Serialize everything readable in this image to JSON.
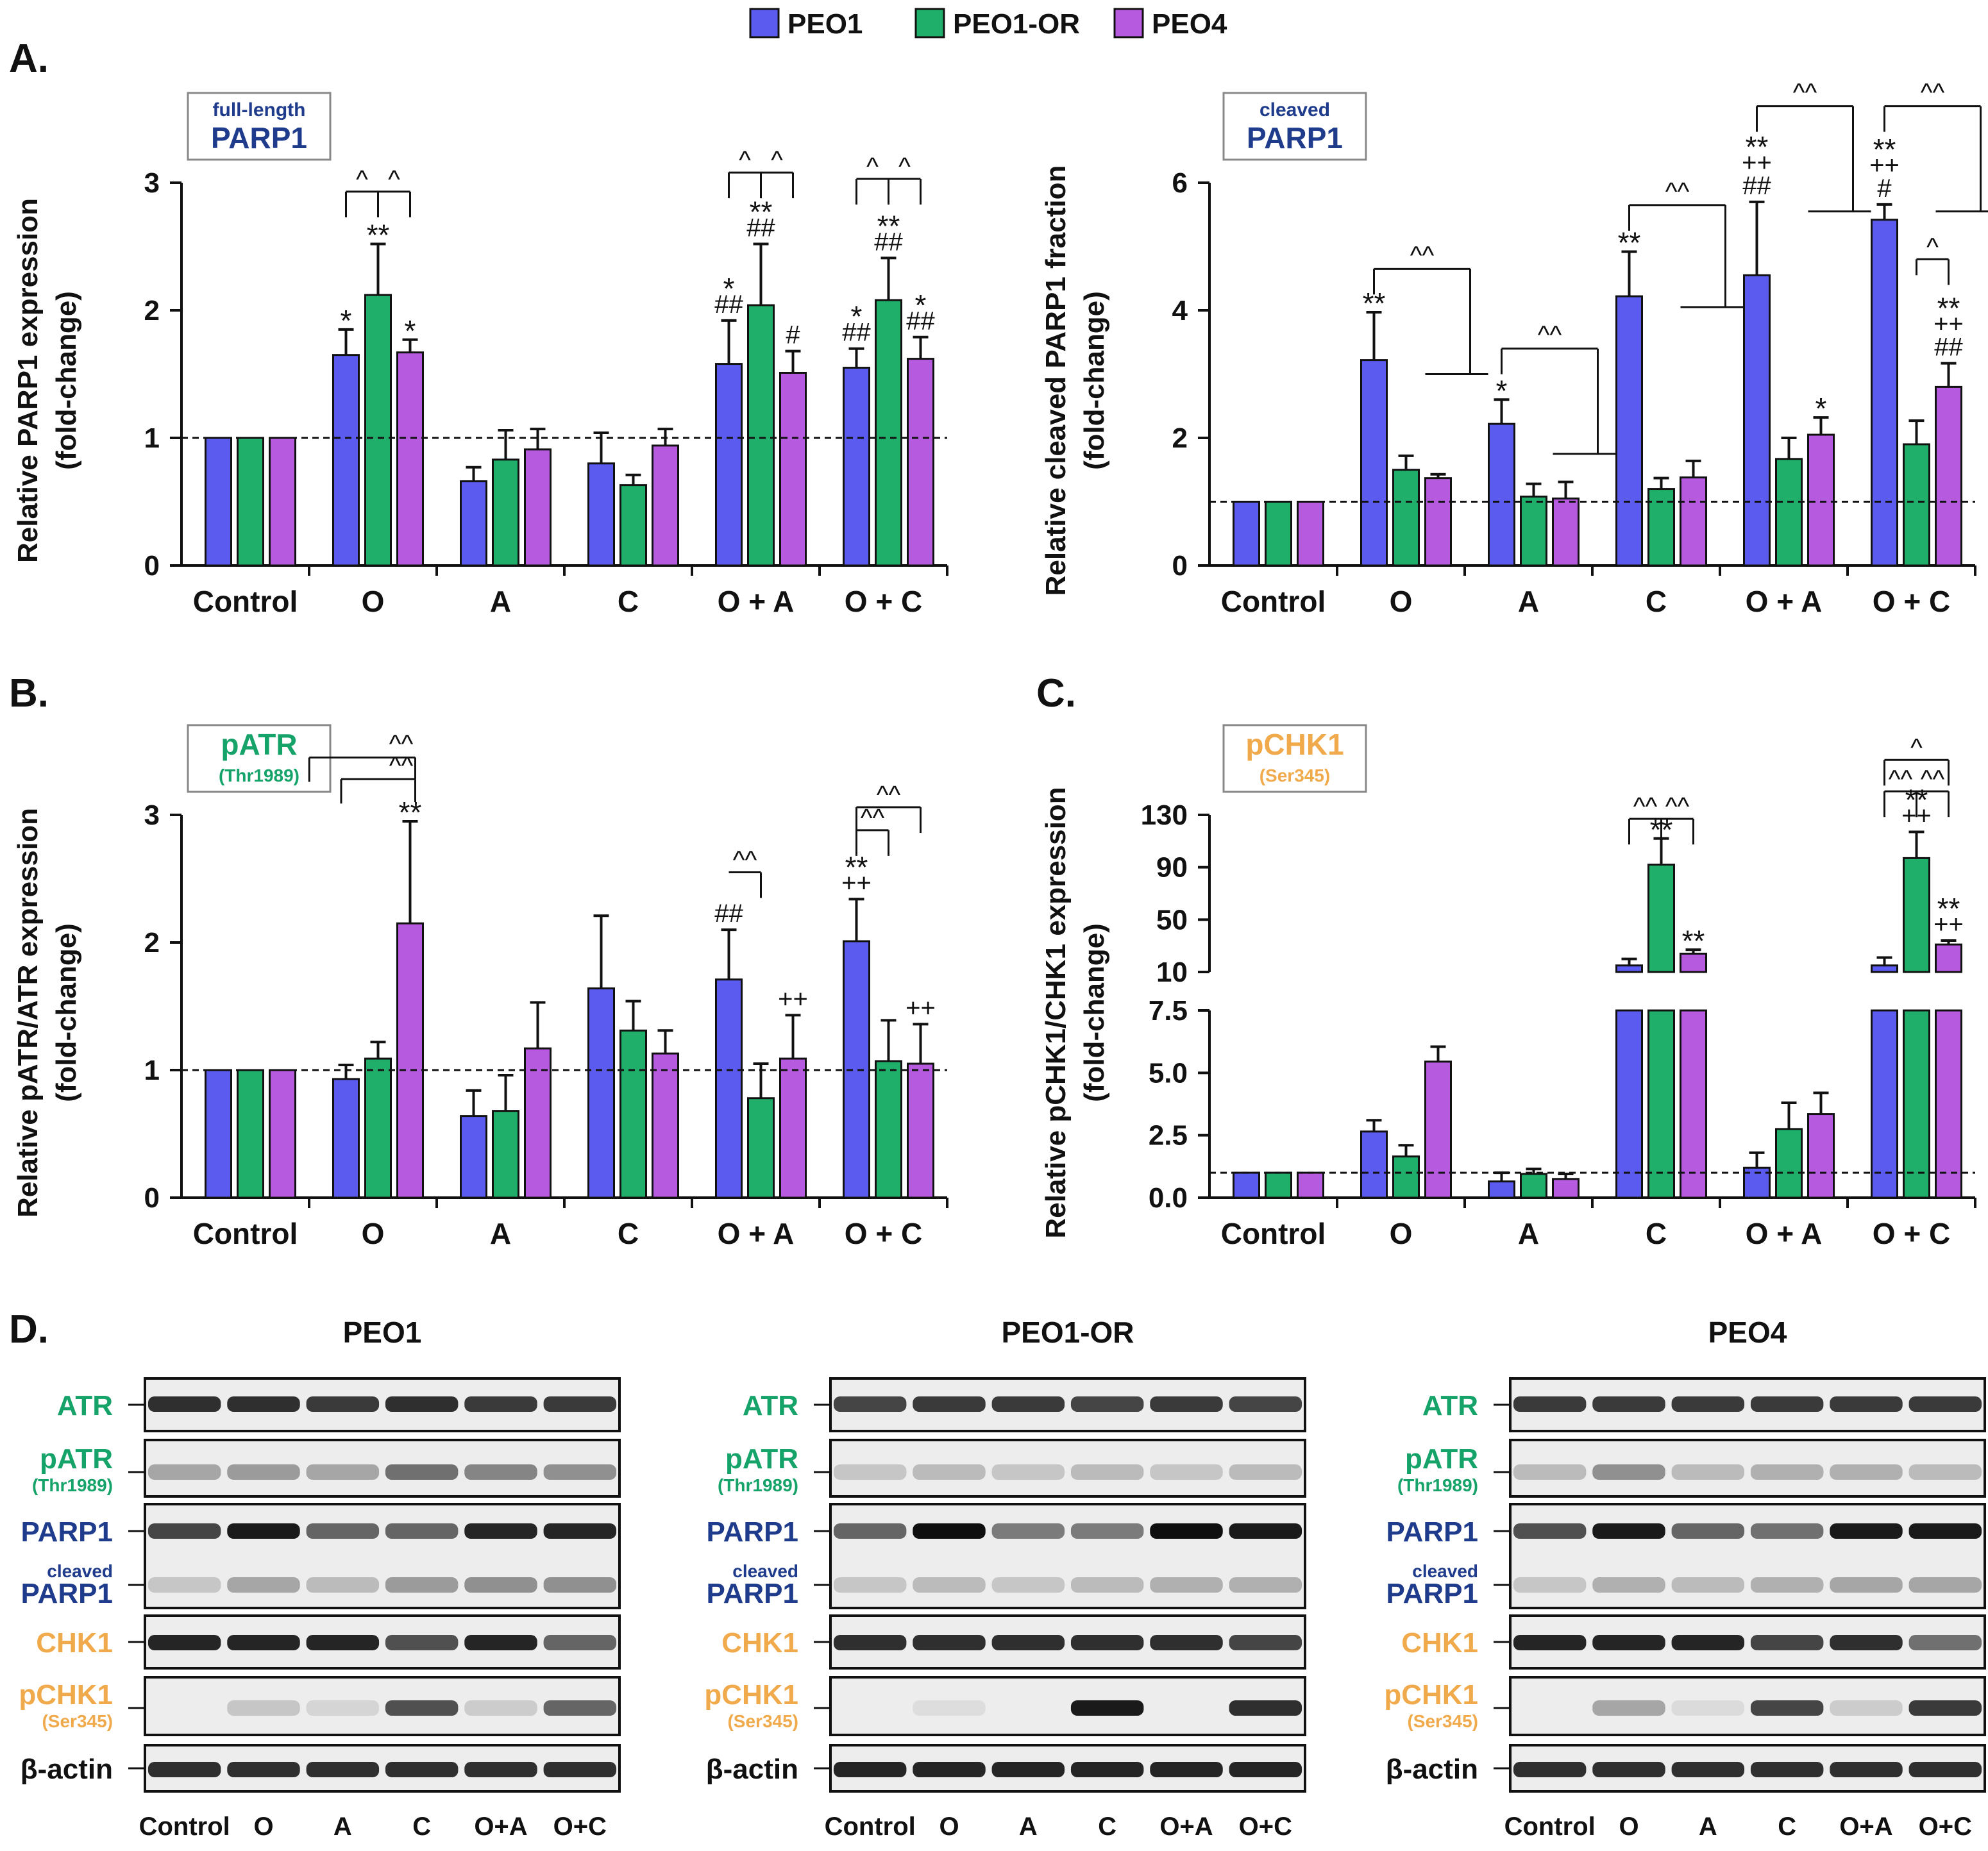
{
  "colors": {
    "peo1": "#5B5BF0",
    "peo1or": "#1FAF6A",
    "peo4": "#B65BE0",
    "dark_blue": "#1F3B8C",
    "green_text": "#15A36A",
    "orange_text": "#F0AA4B",
    "axis": "#111111",
    "panel_fill": "#EDEDED"
  },
  "legend": {
    "items": [
      {
        "name": "PEO1",
        "color": "#5B5BF0"
      },
      {
        "name": "PEO1-OR",
        "color": "#1FAF6A"
      },
      {
        "name": "PEO4",
        "color": "#B65BE0"
      }
    ]
  },
  "chart_data": [
    {
      "id": "A1",
      "panel_letter": "A.",
      "type": "bar",
      "badge": {
        "top": "full-length",
        "main": "PARP1"
      },
      "ylabel": [
        "Relative PARP1 expression",
        "(fold-change)"
      ],
      "ylim": [
        0,
        3
      ],
      "yticks": [
        "0",
        "1",
        "2",
        "3"
      ],
      "categories": [
        "Control",
        "O",
        "A",
        "C",
        "O + A",
        "O + C"
      ],
      "baseline": 1,
      "series": [
        {
          "name": "PEO1",
          "values": [
            1.0,
            1.65,
            0.66,
            0.8,
            1.58,
            1.55
          ],
          "errors": [
            0,
            0.2,
            0.11,
            0.24,
            0.34,
            0.15
          ]
        },
        {
          "name": "PEO1-OR",
          "values": [
            1.0,
            2.12,
            0.83,
            0.63,
            2.04,
            2.08
          ],
          "errors": [
            0,
            0.4,
            0.23,
            0.08,
            0.48,
            0.33
          ]
        },
        {
          "name": "PEO4",
          "values": [
            1.0,
            1.67,
            0.91,
            0.94,
            1.51,
            1.62
          ],
          "errors": [
            0,
            0.1,
            0.16,
            0.13,
            0.17,
            0.17
          ]
        }
      ],
      "annotations": [
        {
          "cat": 1,
          "ser": 0,
          "lines": [
            "*"
          ]
        },
        {
          "cat": 1,
          "ser": 1,
          "lines": [
            "**"
          ]
        },
        {
          "cat": 1,
          "ser": 2,
          "lines": [
            "*"
          ]
        },
        {
          "cat": 4,
          "ser": 0,
          "lines": [
            "*",
            "##"
          ]
        },
        {
          "cat": 4,
          "ser": 1,
          "lines": [
            "**",
            "##"
          ]
        },
        {
          "cat": 4,
          "ser": 2,
          "lines": [
            "#"
          ]
        },
        {
          "cat": 5,
          "ser": 0,
          "lines": [
            "*",
            "##"
          ]
        },
        {
          "cat": 5,
          "ser": 1,
          "lines": [
            "**",
            "##"
          ]
        },
        {
          "cat": 5,
          "ser": 2,
          "lines": [
            "*",
            "##"
          ]
        }
      ],
      "brackets": [
        {
          "cat": 1,
          "from": 0,
          "to": 1,
          "y": 2.93,
          "label": "^"
        },
        {
          "cat": 1,
          "from": 1,
          "to": 2,
          "y": 2.93,
          "label": "^"
        },
        {
          "cat": 4,
          "from": 0,
          "to": 1,
          "y": 3.08,
          "label": "^"
        },
        {
          "cat": 4,
          "from": 1,
          "to": 2,
          "y": 3.08,
          "label": "^"
        },
        {
          "cat": 5,
          "from": 0,
          "to": 1,
          "y": 3.03,
          "label": "^"
        },
        {
          "cat": 5,
          "from": 1,
          "to": 2,
          "y": 3.03,
          "label": "^"
        }
      ]
    },
    {
      "id": "A2",
      "panel_letter": "",
      "type": "bar",
      "badge": {
        "top": "cleaved",
        "main": "PARP1"
      },
      "ylabel": [
        "Relative cleaved PARP1 fraction",
        "(fold-change)"
      ],
      "ylim": [
        0,
        6
      ],
      "yticks": [
        "0",
        "2",
        "4",
        "6"
      ],
      "categories": [
        "Control",
        "O",
        "A",
        "C",
        "O + A",
        "O + C"
      ],
      "baseline": 1,
      "series": [
        {
          "name": "PEO1",
          "values": [
            1.0,
            3.22,
            2.22,
            4.22,
            4.55,
            5.42
          ],
          "errors": [
            0,
            0.75,
            0.38,
            0.7,
            1.15,
            0.24
          ]
        },
        {
          "name": "PEO1-OR",
          "values": [
            1.0,
            1.5,
            1.08,
            1.2,
            1.67,
            1.9
          ],
          "errors": [
            0,
            0.22,
            0.2,
            0.17,
            0.33,
            0.37
          ]
        },
        {
          "name": "PEO4",
          "values": [
            1.0,
            1.37,
            1.05,
            1.38,
            2.05,
            2.8
          ],
          "errors": [
            0,
            0.06,
            0.26,
            0.26,
            0.27,
            0.37
          ]
        }
      ],
      "annotations": [
        {
          "cat": 1,
          "ser": 0,
          "lines": [
            "**"
          ]
        },
        {
          "cat": 2,
          "ser": 0,
          "lines": [
            "*"
          ]
        },
        {
          "cat": 3,
          "ser": 0,
          "lines": [
            "**"
          ]
        },
        {
          "cat": 4,
          "ser": 0,
          "lines": [
            "**",
            "++",
            "##"
          ]
        },
        {
          "cat": 4,
          "ser": 2,
          "lines": [
            "*"
          ]
        },
        {
          "cat": 5,
          "ser": 0,
          "lines": [
            "**",
            "++",
            "#"
          ]
        },
        {
          "cat": 5,
          "ser": 2,
          "lines": [
            "**",
            "++",
            "##"
          ]
        }
      ],
      "forks": [
        {
          "cat": 1,
          "y_top": 4.65,
          "y_mid": 3.0,
          "label": "^^"
        },
        {
          "cat": 2,
          "y_top": 3.4,
          "y_mid": 1.75,
          "label": "^^"
        },
        {
          "cat": 3,
          "y_top": 5.65,
          "y_mid": 4.05,
          "label": "^^"
        },
        {
          "cat": 4,
          "y_top": 7.2,
          "y_mid": 5.55,
          "label": "^^"
        },
        {
          "cat": 5,
          "y_top": 7.2,
          "y_mid": 5.55,
          "label": "^^"
        }
      ],
      "brackets": [
        {
          "cat": 5,
          "from": 1,
          "to": 2,
          "y": 4.8,
          "label": "^",
          "drop_to": 4.55
        }
      ]
    },
    {
      "id": "B",
      "panel_letter": "B.",
      "type": "bar",
      "badge": {
        "top": "pATR",
        "main": "(Thr1989)"
      },
      "ylabel": [
        "Relative pATR/ATR expression",
        "(fold-change)"
      ],
      "ylim": [
        0,
        3
      ],
      "yticks": [
        "0",
        "1",
        "2",
        "3"
      ],
      "categories": [
        "Control",
        "O",
        "A",
        "C",
        "O + A",
        "O + C"
      ],
      "baseline": 1,
      "series": [
        {
          "name": "PEO1",
          "values": [
            1.0,
            0.93,
            0.64,
            1.64,
            1.71,
            2.01
          ],
          "errors": [
            0,
            0.11,
            0.2,
            0.57,
            0.39,
            0.33
          ]
        },
        {
          "name": "PEO1-OR",
          "values": [
            1.0,
            1.09,
            0.68,
            1.31,
            0.78,
            1.07
          ],
          "errors": [
            0,
            0.13,
            0.28,
            0.23,
            0.27,
            0.32
          ]
        },
        {
          "name": "PEO4",
          "values": [
            1.0,
            2.15,
            1.17,
            1.13,
            1.09,
            1.05
          ],
          "errors": [
            0,
            0.8,
            0.36,
            0.18,
            0.34,
            0.31
          ]
        }
      ],
      "annotations": [
        {
          "cat": 1,
          "ser": 2,
          "lines": [
            "**"
          ]
        },
        {
          "cat": 4,
          "ser": 0,
          "lines": [
            "##"
          ]
        },
        {
          "cat": 4,
          "ser": 2,
          "lines": [
            "++"
          ]
        },
        {
          "cat": 5,
          "ser": 0,
          "lines": [
            "**",
            "++"
          ]
        },
        {
          "cat": 5,
          "ser": 2,
          "lines": [
            "++"
          ]
        }
      ],
      "long_brackets": [
        {
          "fromCat": 0.75,
          "toCat": 1.25,
          "y": 3.45,
          "label": "^^",
          "right_drop": 3.28
        },
        {
          "fromCat": 1,
          "toCat": 1.25,
          "y": 3.28,
          "label": "^^",
          "right_drop": 3.1
        }
      ],
      "brackets": [
        {
          "cat": 4,
          "from": 0,
          "to": 1,
          "y": 2.55,
          "label": "^^",
          "left_open": true
        },
        {
          "cat": 5,
          "from": 0,
          "to": 1,
          "y": 2.88,
          "label": "^^"
        },
        {
          "cat": 5,
          "from": 0,
          "to": 2,
          "y": 3.06,
          "label": "^^"
        }
      ]
    },
    {
      "id": "C",
      "panel_letter": "C.",
      "type": "bar",
      "broken_axis": true,
      "badge": {
        "top": "pCHK1",
        "main": "(Ser345)"
      },
      "ylabel": [
        "Relative pCHK1/CHK1 expression",
        "(fold-change)"
      ],
      "ylim_lower": [
        0,
        7.5
      ],
      "ylim_upper": [
        10,
        130
      ],
      "yticks_lower": [
        "0.0",
        "2.5",
        "5.0",
        "7.5"
      ],
      "yticks_upper": [
        "10",
        "50",
        "90",
        "130"
      ],
      "categories": [
        "Control",
        "O",
        "A",
        "C",
        "O + A",
        "O + C"
      ],
      "baseline": 1,
      "series": [
        {
          "name": "PEO1",
          "values": [
            1.0,
            2.65,
            0.65,
            15.0,
            1.2,
            15.0
          ],
          "errors": [
            0,
            0.45,
            0.35,
            5.0,
            0.6,
            6.0
          ]
        },
        {
          "name": "PEO1-OR",
          "values": [
            1.0,
            1.65,
            0.95,
            92.0,
            2.75,
            97.0
          ],
          "errors": [
            0,
            0.45,
            0.2,
            20.0,
            1.05,
            20.0
          ]
        },
        {
          "name": "PEO4",
          "values": [
            1.0,
            5.45,
            0.75,
            24.0,
            3.35,
            31.0
          ],
          "errors": [
            0,
            0.6,
            0.2,
            3.0,
            0.85,
            3.0
          ]
        }
      ],
      "annotations": [
        {
          "cat": 3,
          "ser": 1,
          "lines": [
            "**"
          ]
        },
        {
          "cat": 3,
          "ser": 2,
          "lines": [
            "**"
          ]
        },
        {
          "cat": 5,
          "ser": 1,
          "lines": [
            "**",
            "++"
          ]
        },
        {
          "cat": 5,
          "ser": 2,
          "lines": [
            "**",
            "++"
          ]
        }
      ],
      "brackets": [
        {
          "cat": 3,
          "from": 0,
          "to": 1,
          "y": 127,
          "label": "^^"
        },
        {
          "cat": 3,
          "from": 1,
          "to": 2,
          "y": 127,
          "label": "^^"
        },
        {
          "cat": 5,
          "from": 0,
          "to": 1,
          "y": 148,
          "label": "^^"
        },
        {
          "cat": 5,
          "from": 1,
          "to": 2,
          "y": 148,
          "label": "^^"
        },
        {
          "cat": 5,
          "from": 0,
          "to": 2,
          "y": 172,
          "label": "^"
        }
      ]
    }
  ],
  "westerns": {
    "panel_letter": "D.",
    "lane_labels": [
      "Control",
      "O",
      "A",
      "C",
      "O+A",
      "O+C"
    ],
    "blots": [
      {
        "title": "PEO1",
        "row_labels": [
          {
            "text": "ATR",
            "color": "green"
          },
          {
            "text": "pATR",
            "sub": "(Thr1989)",
            "color": "green"
          },
          {
            "text": "PARP1",
            "color": "blue"
          },
          {
            "text": "PARP1",
            "pre": "cleaved",
            "color": "blue"
          },
          {
            "text": "CHK1",
            "color": "orange"
          },
          {
            "text": "pCHK1",
            "sub": "(Ser345)",
            "color": "orange"
          },
          {
            "text": "β-actin",
            "color": "black"
          }
        ],
        "intensity": {
          "atr": [
            0.85,
            0.85,
            0.8,
            0.85,
            0.8,
            0.8
          ],
          "patr": [
            0.3,
            0.35,
            0.3,
            0.55,
            0.45,
            0.4
          ],
          "parp": [
            0.75,
            0.95,
            0.6,
            0.6,
            0.9,
            0.9
          ],
          "cparp": [
            0.15,
            0.3,
            0.2,
            0.35,
            0.4,
            0.4
          ],
          "chk1": [
            0.9,
            0.9,
            0.9,
            0.7,
            0.9,
            0.6
          ],
          "pchk1": [
            0.0,
            0.15,
            0.08,
            0.7,
            0.12,
            0.6
          ],
          "actin": [
            0.85,
            0.85,
            0.85,
            0.85,
            0.85,
            0.85
          ]
        }
      },
      {
        "title": "PEO1-OR",
        "row_labels": [
          {
            "text": "ATR",
            "color": "green"
          },
          {
            "text": "pATR",
            "sub": "(Thr1989)",
            "color": "green"
          },
          {
            "text": "PARP1",
            "color": "blue"
          },
          {
            "text": "PARP1",
            "pre": "cleaved",
            "color": "blue"
          },
          {
            "text": "CHK1",
            "color": "orange"
          },
          {
            "text": "pCHK1",
            "sub": "(Ser345)",
            "color": "orange"
          },
          {
            "text": "β-actin",
            "color": "black"
          }
        ],
        "intensity": {
          "atr": [
            0.75,
            0.8,
            0.8,
            0.75,
            0.8,
            0.75
          ],
          "patr": [
            0.15,
            0.2,
            0.15,
            0.2,
            0.15,
            0.2
          ],
          "parp": [
            0.6,
            1.0,
            0.5,
            0.5,
            1.0,
            0.95
          ],
          "cparp": [
            0.15,
            0.2,
            0.15,
            0.2,
            0.25,
            0.25
          ],
          "chk1": [
            0.85,
            0.85,
            0.85,
            0.85,
            0.85,
            0.75
          ],
          "pchk1": [
            0.0,
            0.04,
            0.0,
            0.95,
            0.0,
            0.85
          ],
          "actin": [
            0.9,
            0.9,
            0.9,
            0.9,
            0.9,
            0.9
          ]
        }
      },
      {
        "title": "PEO4",
        "row_labels": [
          {
            "text": "ATR",
            "color": "green"
          },
          {
            "text": "pATR",
            "sub": "(Thr1989)",
            "color": "green"
          },
          {
            "text": "PARP1",
            "color": "blue"
          },
          {
            "text": "PARP1",
            "pre": "cleaved",
            "color": "blue"
          },
          {
            "text": "CHK1",
            "color": "orange"
          },
          {
            "text": "pCHK1",
            "sub": "(Ser345)",
            "color": "orange"
          },
          {
            "text": "β-actin",
            "color": "black"
          }
        ],
        "intensity": {
          "atr": [
            0.8,
            0.8,
            0.8,
            0.8,
            0.8,
            0.8
          ],
          "patr": [
            0.2,
            0.4,
            0.2,
            0.25,
            0.25,
            0.2
          ],
          "parp": [
            0.7,
            0.95,
            0.6,
            0.55,
            0.95,
            0.95
          ],
          "cparp": [
            0.15,
            0.25,
            0.2,
            0.25,
            0.3,
            0.3
          ],
          "chk1": [
            0.9,
            0.9,
            0.9,
            0.75,
            0.85,
            0.55
          ],
          "pchk1": [
            0.0,
            0.3,
            0.05,
            0.75,
            0.12,
            0.8
          ],
          "actin": [
            0.85,
            0.85,
            0.85,
            0.85,
            0.85,
            0.85
          ]
        }
      }
    ]
  }
}
